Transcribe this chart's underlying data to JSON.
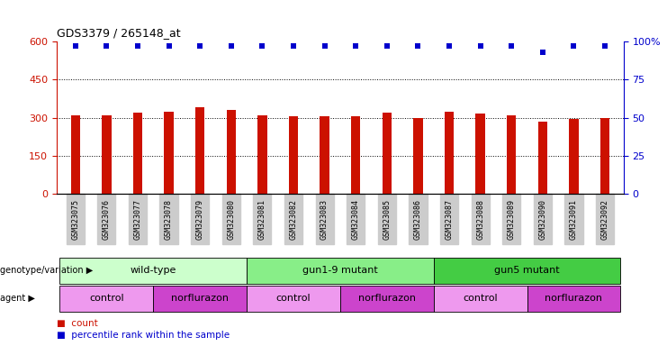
{
  "title": "GDS3379 / 265148_at",
  "samples": [
    "GSM323075",
    "GSM323076",
    "GSM323077",
    "GSM323078",
    "GSM323079",
    "GSM323080",
    "GSM323081",
    "GSM323082",
    "GSM323083",
    "GSM323084",
    "GSM323085",
    "GSM323086",
    "GSM323087",
    "GSM323088",
    "GSM323089",
    "GSM323090",
    "GSM323091",
    "GSM323092"
  ],
  "counts": [
    310,
    308,
    320,
    325,
    340,
    330,
    310,
    305,
    305,
    305,
    320,
    300,
    325,
    315,
    310,
    285,
    295,
    300
  ],
  "percentile_ranks": [
    97,
    97,
    97,
    97,
    97,
    97,
    97,
    97,
    97,
    97,
    97,
    97,
    97,
    97,
    97,
    93,
    97,
    97
  ],
  "bar_color": "#cc1100",
  "dot_color": "#0000cc",
  "ylim_left": [
    0,
    600
  ],
  "ylim_right": [
    0,
    100
  ],
  "yticks_left": [
    0,
    150,
    300,
    450,
    600
  ],
  "yticks_right": [
    0,
    25,
    50,
    75,
    100
  ],
  "ytick_labels_left": [
    "0",
    "150",
    "300",
    "450",
    "600"
  ],
  "ytick_labels_right": [
    "0",
    "25",
    "50",
    "75",
    "100%"
  ],
  "left_axis_color": "#cc1100",
  "right_axis_color": "#0000cc",
  "dotted_line_values": [
    150,
    300,
    450
  ],
  "genotype_groups": [
    {
      "label": "wild-type",
      "start": 0,
      "end": 5,
      "color": "#ccffcc"
    },
    {
      "label": "gun1-9 mutant",
      "start": 6,
      "end": 11,
      "color": "#88ee88"
    },
    {
      "label": "gun5 mutant",
      "start": 12,
      "end": 17,
      "color": "#44cc44"
    }
  ],
  "agent_groups": [
    {
      "label": "control",
      "start": 0,
      "end": 2,
      "color": "#ee99ee"
    },
    {
      "label": "norflurazon",
      "start": 3,
      "end": 5,
      "color": "#cc44cc"
    },
    {
      "label": "control",
      "start": 6,
      "end": 8,
      "color": "#ee99ee"
    },
    {
      "label": "norflurazon",
      "start": 9,
      "end": 11,
      "color": "#cc44cc"
    },
    {
      "label": "control",
      "start": 12,
      "end": 14,
      "color": "#ee99ee"
    },
    {
      "label": "norflurazon",
      "start": 15,
      "end": 17,
      "color": "#cc44cc"
    }
  ],
  "tick_bg_color": "#cccccc",
  "legend_count_color": "#cc1100",
  "legend_dot_color": "#0000cc",
  "bar_width": 0.3
}
